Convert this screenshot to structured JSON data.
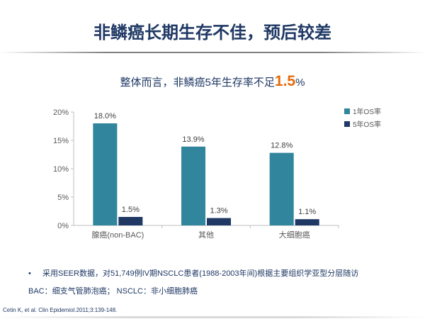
{
  "slide": {
    "title": "非鳞癌长期生存不佳，预后较差",
    "subtitle_before": "整体而言，非鳞癌5年生存率不足",
    "subtitle_highlight": "1.5",
    "subtitle_after": "%",
    "bullet_marker": "•",
    "bullet_text": "采用SEER数据，对51,749例IV期NSCLC患者(1988-2003年间)根据主要组织学亚型分层随访",
    "abbreviation_note": "BAC：细支气管肺泡癌； NSCLC：非小细胞肺癌",
    "citation": "Cetin K, et al. Clin Epidemiol.2011;3:139-148.",
    "colors": {
      "title": "#1f3864",
      "highlight": "#e36c0a"
    }
  },
  "chart_data": {
    "type": "bar",
    "categories": [
      "腺癌(non-BAC)",
      "其他",
      "大细胞癌"
    ],
    "series": [
      {
        "name": "1年OS率",
        "values": [
          18.0,
          13.9,
          12.8
        ],
        "labels": [
          "18.0%",
          "13.9%",
          "12.8%"
        ],
        "color": "#31859c"
      },
      {
        "name": "5年OS率",
        "values": [
          1.5,
          1.3,
          1.1
        ],
        "labels": [
          "1.5%",
          "1.3%",
          "1.1%"
        ],
        "color": "#1f3864"
      }
    ],
    "ylim": [
      0,
      20
    ],
    "yticks": [
      0,
      5,
      10,
      15,
      20
    ],
    "ytick_labels": [
      "0%",
      "5%",
      "10%",
      "15%",
      "20%"
    ],
    "legend": "right",
    "grid": false,
    "title": "",
    "xlabel": "",
    "ylabel": ""
  }
}
